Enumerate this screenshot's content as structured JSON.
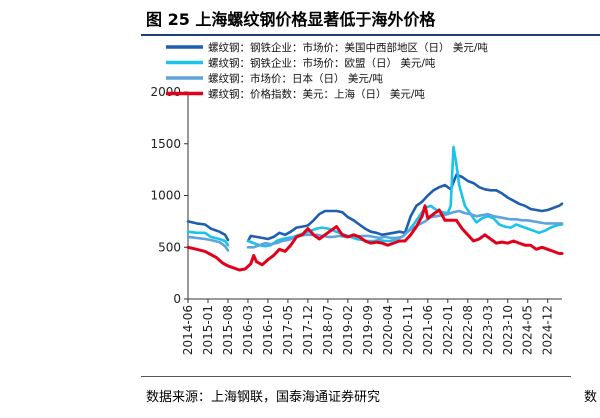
{
  "figure": {
    "title": "图 25 上海螺纹钢价格显著低于海外价格",
    "source": "数据来源：上海钢联，国泰海通证券研究",
    "clipped_right_char": "数"
  },
  "chart_data": {
    "type": "line",
    "title": "",
    "xlabel": "",
    "ylabel": "",
    "ylim": [
      0,
      2000
    ],
    "yticks": [
      "0",
      "500",
      "1000",
      "1500",
      "2000"
    ],
    "xticks": [
      "2014-06",
      "2015-01",
      "2015-08",
      "2016-03",
      "2016-10",
      "2017-05",
      "2017-12",
      "2018-07",
      "2019-02",
      "2019-09",
      "2020-04",
      "2020-11",
      "2021-06",
      "2022-01",
      "2022-08",
      "2023-03",
      "2023-10",
      "2024-05",
      "2024-12"
    ],
    "x_range": [
      "2014-06",
      "2025-05"
    ],
    "legend_placement": "top",
    "grid": false,
    "series": [
      {
        "name": "螺纹钢：钢铁企业：市场价：美国中西部地区（日） 美元/吨",
        "color": "#1f5fb0",
        "points": [
          [
            "2014-06",
            750
          ],
          [
            "2014-09",
            730
          ],
          [
            "2014-12",
            720
          ],
          [
            "2015-02",
            680
          ],
          [
            "2015-05",
            650
          ],
          [
            "2015-07",
            620
          ],
          [
            "2015-08",
            570
          ],
          [
            "2015-09",
            null
          ],
          [
            "2016-03",
            560
          ],
          [
            "2016-04",
            610
          ],
          [
            "2016-06",
            600
          ],
          [
            "2016-08",
            590
          ],
          [
            "2016-10",
            580
          ],
          [
            "2016-12",
            600
          ],
          [
            "2017-02",
            640
          ],
          [
            "2017-04",
            620
          ],
          [
            "2017-06",
            650
          ],
          [
            "2017-08",
            690
          ],
          [
            "2017-10",
            700
          ],
          [
            "2017-12",
            710
          ],
          [
            "2018-02",
            760
          ],
          [
            "2018-04",
            820
          ],
          [
            "2018-06",
            850
          ],
          [
            "2018-08",
            850
          ],
          [
            "2018-10",
            850
          ],
          [
            "2018-12",
            840
          ],
          [
            "2019-02",
            790
          ],
          [
            "2019-04",
            760
          ],
          [
            "2019-06",
            720
          ],
          [
            "2019-08",
            680
          ],
          [
            "2019-10",
            650
          ],
          [
            "2019-12",
            640
          ],
          [
            "2020-02",
            620
          ],
          [
            "2020-04",
            630
          ],
          [
            "2020-06",
            640
          ],
          [
            "2020-08",
            650
          ],
          [
            "2020-10",
            640
          ],
          [
            "2020-12",
            800
          ],
          [
            "2021-02",
            900
          ],
          [
            "2021-04",
            940
          ],
          [
            "2021-06",
            1000
          ],
          [
            "2021-08",
            1050
          ],
          [
            "2021-10",
            1080
          ],
          [
            "2021-12",
            1100
          ],
          [
            "2022-02",
            1060
          ],
          [
            "2022-04",
            1200
          ],
          [
            "2022-06",
            1180
          ],
          [
            "2022-08",
            1140
          ],
          [
            "2022-10",
            1120
          ],
          [
            "2022-12",
            1080
          ],
          [
            "2023-02",
            1060
          ],
          [
            "2023-04",
            1050
          ],
          [
            "2023-06",
            1050
          ],
          [
            "2023-08",
            1020
          ],
          [
            "2023-10",
            980
          ],
          [
            "2023-12",
            950
          ],
          [
            "2024-02",
            920
          ],
          [
            "2024-04",
            900
          ],
          [
            "2024-06",
            870
          ],
          [
            "2024-08",
            860
          ],
          [
            "2024-10",
            850
          ],
          [
            "2024-12",
            860
          ],
          [
            "2025-02",
            880
          ],
          [
            "2025-04",
            900
          ],
          [
            "2025-05",
            920
          ]
        ]
      },
      {
        "name": "螺纹钢：钢铁企业：市场价：欧盟（日） 美元/吨",
        "color": "#19c4ea",
        "points": [
          [
            "2014-06",
            650
          ],
          [
            "2014-09",
            640
          ],
          [
            "2014-12",
            640
          ],
          [
            "2015-02",
            600
          ],
          [
            "2015-05",
            580
          ],
          [
            "2015-07",
            560
          ],
          [
            "2015-08",
            520
          ],
          [
            "2015-09",
            null
          ],
          [
            "2016-03",
            560
          ],
          [
            "2016-05",
            540
          ],
          [
            "2016-07",
            520
          ],
          [
            "2016-09",
            510
          ],
          [
            "2016-11",
            520
          ],
          [
            "2017-01",
            560
          ],
          [
            "2017-03",
            580
          ],
          [
            "2017-05",
            590
          ],
          [
            "2017-07",
            600
          ],
          [
            "2017-09",
            620
          ],
          [
            "2017-11",
            640
          ],
          [
            "2018-01",
            660
          ],
          [
            "2018-03",
            680
          ],
          [
            "2018-05",
            690
          ],
          [
            "2018-07",
            680
          ],
          [
            "2018-09",
            660
          ],
          [
            "2018-11",
            640
          ],
          [
            "2019-01",
            620
          ],
          [
            "2019-03",
            600
          ],
          [
            "2019-05",
            580
          ],
          [
            "2019-07",
            570
          ],
          [
            "2019-09",
            560
          ],
          [
            "2019-11",
            560
          ],
          [
            "2020-01",
            570
          ],
          [
            "2020-03",
            560
          ],
          [
            "2020-05",
            560
          ],
          [
            "2020-07",
            580
          ],
          [
            "2020-09",
            600
          ],
          [
            "2020-11",
            650
          ],
          [
            "2021-01",
            720
          ],
          [
            "2021-03",
            800
          ],
          [
            "2021-05",
            880
          ],
          [
            "2021-07",
            900
          ],
          [
            "2021-09",
            860
          ],
          [
            "2021-11",
            840
          ],
          [
            "2022-01",
            830
          ],
          [
            "2022-02",
            900
          ],
          [
            "2022-03",
            1470
          ],
          [
            "2022-04",
            1300
          ],
          [
            "2022-05",
            1100
          ],
          [
            "2022-07",
            900
          ],
          [
            "2022-09",
            820
          ],
          [
            "2022-11",
            740
          ],
          [
            "2023-01",
            780
          ],
          [
            "2023-03",
            800
          ],
          [
            "2023-05",
            780
          ],
          [
            "2023-07",
            720
          ],
          [
            "2023-09",
            700
          ],
          [
            "2023-11",
            690
          ],
          [
            "2024-01",
            720
          ],
          [
            "2024-03",
            700
          ],
          [
            "2024-05",
            680
          ],
          [
            "2024-07",
            660
          ],
          [
            "2024-09",
            640
          ],
          [
            "2024-11",
            660
          ],
          [
            "2025-01",
            690
          ],
          [
            "2025-03",
            710
          ],
          [
            "2025-05",
            720
          ]
        ]
      },
      {
        "name": "螺纹钢：市场价：日本（日） 美元/吨",
        "color": "#5ea3dc",
        "points": [
          [
            "2014-06",
            600
          ],
          [
            "2014-09",
            590
          ],
          [
            "2014-12",
            580
          ],
          [
            "2015-02",
            570
          ],
          [
            "2015-05",
            550
          ],
          [
            "2015-07",
            510
          ],
          [
            "2015-08",
            470
          ],
          [
            "2015-09",
            null
          ],
          [
            "2016-03",
            500
          ],
          [
            "2016-05",
            500
          ],
          [
            "2016-07",
            520
          ],
          [
            "2016-09",
            540
          ],
          [
            "2016-11",
            530
          ],
          [
            "2017-01",
            540
          ],
          [
            "2017-03",
            560
          ],
          [
            "2017-05",
            570
          ],
          [
            "2017-07",
            590
          ],
          [
            "2017-09",
            610
          ],
          [
            "2017-11",
            620
          ],
          [
            "2018-01",
            620
          ],
          [
            "2018-03",
            620
          ],
          [
            "2018-05",
            610
          ],
          [
            "2018-07",
            600
          ],
          [
            "2018-09",
            600
          ],
          [
            "2018-11",
            610
          ],
          [
            "2019-01",
            600
          ],
          [
            "2019-03",
            600
          ],
          [
            "2019-05",
            600
          ],
          [
            "2019-07",
            610
          ],
          [
            "2019-09",
            610
          ],
          [
            "2019-11",
            600
          ],
          [
            "2020-01",
            590
          ],
          [
            "2020-03",
            600
          ],
          [
            "2020-05",
            590
          ],
          [
            "2020-07",
            590
          ],
          [
            "2020-09",
            600
          ],
          [
            "2020-11",
            650
          ],
          [
            "2021-01",
            690
          ],
          [
            "2021-03",
            720
          ],
          [
            "2021-05",
            750
          ],
          [
            "2021-07",
            790
          ],
          [
            "2021-09",
            800
          ],
          [
            "2021-11",
            810
          ],
          [
            "2022-01",
            820
          ],
          [
            "2022-03",
            840
          ],
          [
            "2022-05",
            850
          ],
          [
            "2022-07",
            830
          ],
          [
            "2022-09",
            820
          ],
          [
            "2022-11",
            800
          ],
          [
            "2023-01",
            810
          ],
          [
            "2023-03",
            820
          ],
          [
            "2023-05",
            800
          ],
          [
            "2023-07",
            790
          ],
          [
            "2023-09",
            780
          ],
          [
            "2023-11",
            770
          ],
          [
            "2024-01",
            770
          ],
          [
            "2024-03",
            760
          ],
          [
            "2024-05",
            760
          ],
          [
            "2024-07",
            750
          ],
          [
            "2024-09",
            740
          ],
          [
            "2024-11",
            730
          ],
          [
            "2025-01",
            730
          ],
          [
            "2025-03",
            730
          ],
          [
            "2025-05",
            730
          ]
        ]
      },
      {
        "name": "螺纹钢：价格指数：美元：上海（日） 美元/吨",
        "color": "#e3001b",
        "points": [
          [
            "2014-06",
            500
          ],
          [
            "2014-09",
            480
          ],
          [
            "2014-12",
            460
          ],
          [
            "2015-02",
            430
          ],
          [
            "2015-04",
            400
          ],
          [
            "2015-06",
            350
          ],
          [
            "2015-08",
            320
          ],
          [
            "2015-10",
            300
          ],
          [
            "2015-12",
            280
          ],
          [
            "2016-02",
            290
          ],
          [
            "2016-04",
            340
          ],
          [
            "2016-05",
            420
          ],
          [
            "2016-06",
            360
          ],
          [
            "2016-08",
            330
          ],
          [
            "2016-10",
            380
          ],
          [
            "2016-12",
            420
          ],
          [
            "2017-02",
            480
          ],
          [
            "2017-04",
            460
          ],
          [
            "2017-06",
            520
          ],
          [
            "2017-08",
            600
          ],
          [
            "2017-10",
            620
          ],
          [
            "2017-12",
            680
          ],
          [
            "2018-02",
            620
          ],
          [
            "2018-04",
            580
          ],
          [
            "2018-06",
            620
          ],
          [
            "2018-08",
            660
          ],
          [
            "2018-10",
            700
          ],
          [
            "2018-12",
            620
          ],
          [
            "2019-02",
            600
          ],
          [
            "2019-04",
            620
          ],
          [
            "2019-06",
            600
          ],
          [
            "2019-08",
            560
          ],
          [
            "2019-10",
            540
          ],
          [
            "2019-12",
            550
          ],
          [
            "2020-02",
            540
          ],
          [
            "2020-04",
            520
          ],
          [
            "2020-06",
            540
          ],
          [
            "2020-08",
            560
          ],
          [
            "2020-10",
            560
          ],
          [
            "2020-12",
            620
          ],
          [
            "2021-02",
            700
          ],
          [
            "2021-04",
            800
          ],
          [
            "2021-05",
            900
          ],
          [
            "2021-06",
            780
          ],
          [
            "2021-08",
            820
          ],
          [
            "2021-10",
            860
          ],
          [
            "2021-12",
            760
          ],
          [
            "2022-02",
            760
          ],
          [
            "2022-04",
            760
          ],
          [
            "2022-06",
            680
          ],
          [
            "2022-08",
            620
          ],
          [
            "2022-10",
            560
          ],
          [
            "2022-12",
            580
          ],
          [
            "2023-02",
            620
          ],
          [
            "2023-04",
            580
          ],
          [
            "2023-06",
            540
          ],
          [
            "2023-08",
            550
          ],
          [
            "2023-10",
            540
          ],
          [
            "2023-12",
            560
          ],
          [
            "2024-02",
            540
          ],
          [
            "2024-04",
            520
          ],
          [
            "2024-06",
            520
          ],
          [
            "2024-08",
            480
          ],
          [
            "2024-10",
            500
          ],
          [
            "2024-12",
            480
          ],
          [
            "2025-02",
            460
          ],
          [
            "2025-04",
            440
          ],
          [
            "2025-05",
            440
          ]
        ]
      }
    ]
  }
}
